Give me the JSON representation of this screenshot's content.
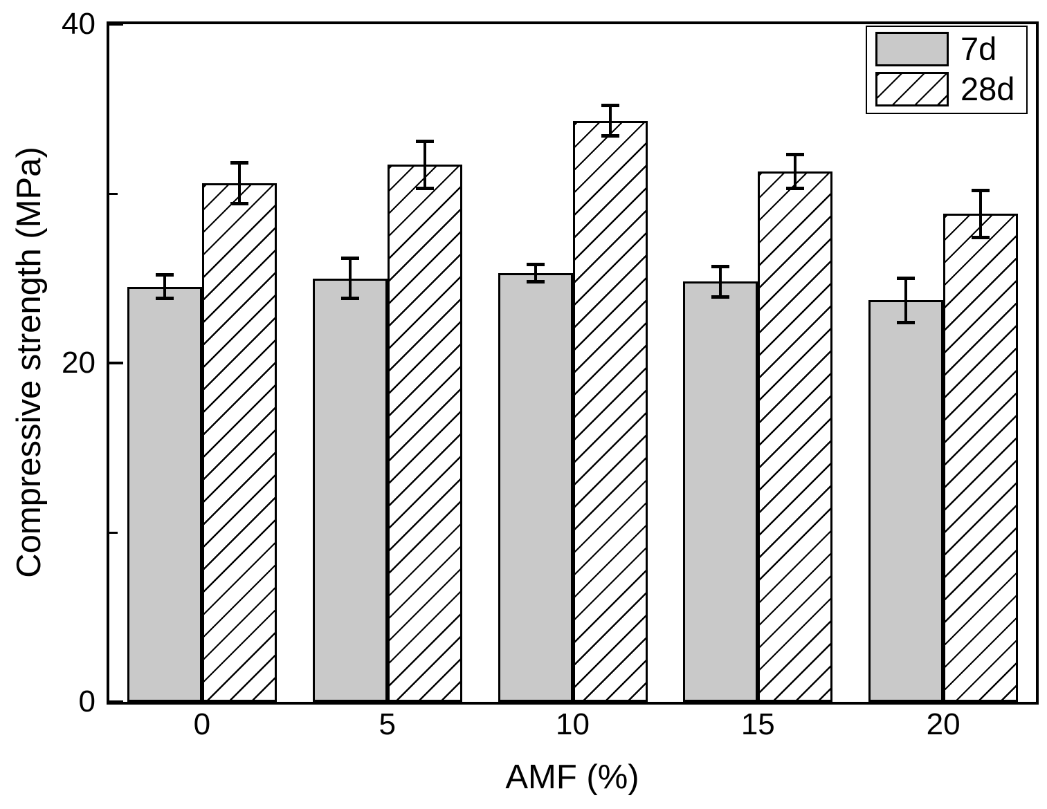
{
  "chart_data": {
    "type": "bar",
    "title": "",
    "xlabel": "AMF (%)",
    "ylabel": "Compressive strength (MPa)",
    "categories": [
      "0",
      "5",
      "10",
      "15",
      "20"
    ],
    "series": [
      {
        "name": "7d",
        "style": "solid-gray",
        "values": [
          24.5,
          25.0,
          25.3,
          24.8,
          23.7
        ],
        "errors": [
          0.7,
          1.2,
          0.5,
          0.9,
          1.3
        ]
      },
      {
        "name": "28d",
        "style": "hatched",
        "values": [
          30.6,
          31.7,
          34.3,
          31.3,
          28.8
        ],
        "errors": [
          1.2,
          1.4,
          0.9,
          1.0,
          1.4
        ]
      }
    ],
    "ylim": [
      0,
      40
    ],
    "y_major_ticks": [
      0,
      20,
      40
    ],
    "y_minor_ticks": [
      10,
      30
    ],
    "grid": false,
    "error_bars": true,
    "legend_position": "top-right"
  },
  "colors": {
    "bar_fill_7d": "#c9c9c9",
    "bar_fill_28d": "#ffffff",
    "hatch_and_lines": "#000000",
    "background": "#ffffff"
  }
}
